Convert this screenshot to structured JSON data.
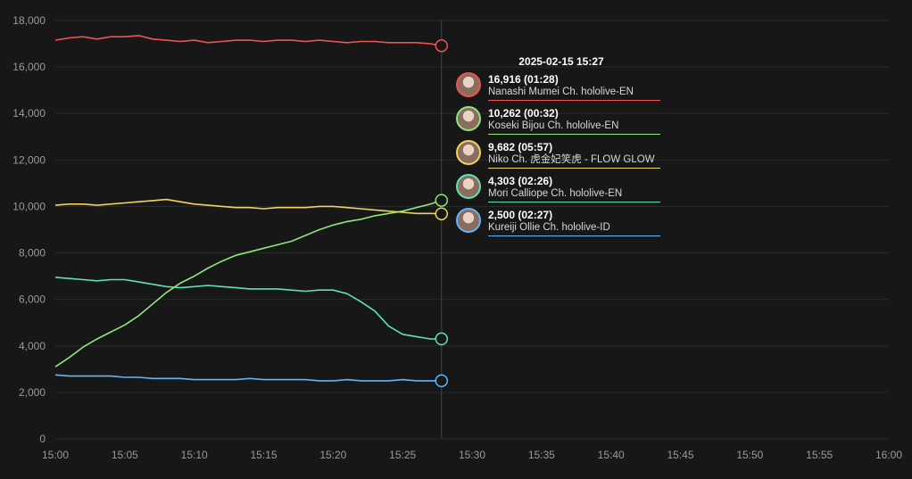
{
  "chart_data": {
    "type": "line",
    "x_ticks": [
      "15:00",
      "15:05",
      "15:10",
      "15:15",
      "15:20",
      "15:25",
      "15:30",
      "15:35",
      "15:40",
      "15:45",
      "15:50",
      "15:55",
      "16:00"
    ],
    "y_ticks": [
      "0",
      "2,000",
      "4,000",
      "6,000",
      "8,000",
      "10,000",
      "12,000",
      "14,000",
      "16,000",
      "18,000"
    ],
    "ylim": [
      0,
      18000
    ],
    "xlim_minutes": [
      0,
      60
    ],
    "grid": true,
    "legend": "tooltip",
    "hover": {
      "time_label": "2025-02-15 15:27",
      "x_minutes": 27.8
    },
    "series": [
      {
        "name": "Nanashi Mumei Ch. hololive-EN",
        "color": "#ef5350",
        "value_label": "16,916",
        "duration": "(01:28)",
        "points": [
          [
            0,
            17150
          ],
          [
            1,
            17250
          ],
          [
            2,
            17300
          ],
          [
            3,
            17200
          ],
          [
            4,
            17300
          ],
          [
            5,
            17300
          ],
          [
            6,
            17350
          ],
          [
            7,
            17200
          ],
          [
            8,
            17150
          ],
          [
            9,
            17100
          ],
          [
            10,
            17150
          ],
          [
            11,
            17050
          ],
          [
            12,
            17100
          ],
          [
            13,
            17150
          ],
          [
            14,
            17150
          ],
          [
            15,
            17100
          ],
          [
            16,
            17150
          ],
          [
            17,
            17150
          ],
          [
            18,
            17100
          ],
          [
            19,
            17150
          ],
          [
            20,
            17100
          ],
          [
            21,
            17050
          ],
          [
            22,
            17100
          ],
          [
            23,
            17100
          ],
          [
            24,
            17050
          ],
          [
            25,
            17050
          ],
          [
            26,
            17050
          ],
          [
            27,
            17000
          ],
          [
            27.8,
            16916
          ]
        ]
      },
      {
        "name": "Koseki Bijou Ch. hololive-EN",
        "color": "#8ee67a",
        "value_label": "10,262",
        "duration": "(00:32)",
        "points": [
          [
            0,
            3100
          ],
          [
            1,
            3500
          ],
          [
            2,
            3950
          ],
          [
            3,
            4300
          ],
          [
            4,
            4600
          ],
          [
            5,
            4900
          ],
          [
            6,
            5300
          ],
          [
            7,
            5800
          ],
          [
            8,
            6300
          ],
          [
            9,
            6700
          ],
          [
            10,
            7000
          ],
          [
            11,
            7350
          ],
          [
            12,
            7650
          ],
          [
            13,
            7900
          ],
          [
            14,
            8050
          ],
          [
            15,
            8200
          ],
          [
            16,
            8350
          ],
          [
            17,
            8500
          ],
          [
            18,
            8750
          ],
          [
            19,
            9000
          ],
          [
            20,
            9200
          ],
          [
            21,
            9350
          ],
          [
            22,
            9450
          ],
          [
            23,
            9600
          ],
          [
            24,
            9700
          ],
          [
            25,
            9800
          ],
          [
            26,
            9950
          ],
          [
            27,
            10100
          ],
          [
            27.8,
            10262
          ]
        ]
      },
      {
        "name": "Niko Ch. 虎金妃笑虎 - FLOW GLOW",
        "color": "#f2d35c",
        "value_label": "9,682",
        "duration": "(05:57)",
        "points": [
          [
            0,
            10050
          ],
          [
            1,
            10100
          ],
          [
            2,
            10100
          ],
          [
            3,
            10050
          ],
          [
            4,
            10100
          ],
          [
            5,
            10150
          ],
          [
            6,
            10200
          ],
          [
            7,
            10250
          ],
          [
            8,
            10300
          ],
          [
            9,
            10200
          ],
          [
            10,
            10100
          ],
          [
            11,
            10050
          ],
          [
            12,
            10000
          ],
          [
            13,
            9950
          ],
          [
            14,
            9950
          ],
          [
            15,
            9900
          ],
          [
            16,
            9950
          ],
          [
            17,
            9950
          ],
          [
            18,
            9950
          ],
          [
            19,
            10000
          ],
          [
            20,
            10000
          ],
          [
            21,
            9950
          ],
          [
            22,
            9900
          ],
          [
            23,
            9850
          ],
          [
            24,
            9800
          ],
          [
            25,
            9750
          ],
          [
            26,
            9700
          ],
          [
            27,
            9700
          ],
          [
            27.8,
            9682
          ]
        ]
      },
      {
        "name": "Mori Calliope Ch. hololive-EN",
        "color": "#5fe3ae",
        "value_label": "4,303",
        "duration": "(02:26)",
        "points": [
          [
            0,
            6950
          ],
          [
            1,
            6900
          ],
          [
            2,
            6850
          ],
          [
            3,
            6800
          ],
          [
            4,
            6850
          ],
          [
            5,
            6850
          ],
          [
            6,
            6750
          ],
          [
            7,
            6650
          ],
          [
            8,
            6550
          ],
          [
            9,
            6500
          ],
          [
            10,
            6550
          ],
          [
            11,
            6600
          ],
          [
            12,
            6550
          ],
          [
            13,
            6500
          ],
          [
            14,
            6450
          ],
          [
            15,
            6450
          ],
          [
            16,
            6450
          ],
          [
            17,
            6400
          ],
          [
            18,
            6350
          ],
          [
            19,
            6400
          ],
          [
            20,
            6400
          ],
          [
            21,
            6250
          ],
          [
            22,
            5900
          ],
          [
            23,
            5500
          ],
          [
            24,
            4850
          ],
          [
            25,
            4500
          ],
          [
            26,
            4400
          ],
          [
            27,
            4300
          ],
          [
            27.8,
            4303
          ]
        ]
      },
      {
        "name": "Kureiji Ollie Ch. hololive-ID",
        "color": "#64b5f6",
        "value_label": "2,500",
        "duration": "(02:27)",
        "points": [
          [
            0,
            2750
          ],
          [
            1,
            2700
          ],
          [
            2,
            2700
          ],
          [
            3,
            2700
          ],
          [
            4,
            2700
          ],
          [
            5,
            2650
          ],
          [
            6,
            2650
          ],
          [
            7,
            2600
          ],
          [
            8,
            2600
          ],
          [
            9,
            2600
          ],
          [
            10,
            2550
          ],
          [
            11,
            2550
          ],
          [
            12,
            2550
          ],
          [
            13,
            2550
          ],
          [
            14,
            2600
          ],
          [
            15,
            2550
          ],
          [
            16,
            2550
          ],
          [
            17,
            2550
          ],
          [
            18,
            2550
          ],
          [
            19,
            2500
          ],
          [
            20,
            2500
          ],
          [
            21,
            2550
          ],
          [
            22,
            2500
          ],
          [
            23,
            2500
          ],
          [
            24,
            2500
          ],
          [
            25,
            2550
          ],
          [
            26,
            2500
          ],
          [
            27,
            2500
          ],
          [
            27.8,
            2500
          ]
        ]
      }
    ]
  }
}
